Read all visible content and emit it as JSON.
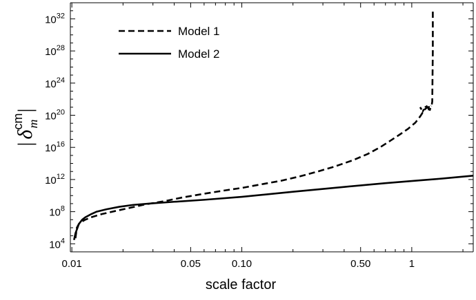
{
  "chart_data": {
    "type": "line",
    "title": "",
    "xlabel": "scale factor",
    "ylabel": {
      "open": "|",
      "symbol": "δ",
      "sup": "cm",
      "sub": "m",
      "close": "|"
    },
    "x_scale": "log",
    "y_scale": "log",
    "xlim": [
      0.0098,
      2.3
    ],
    "ylim": [
      1000,
      1e+34
    ],
    "grid": false,
    "legend_position": "top-left",
    "x_ticks": [
      {
        "value": 0.01,
        "label": "0.01"
      },
      {
        "value": 0.05,
        "label": "0.05"
      },
      {
        "value": 0.1,
        "label": "0.10"
      },
      {
        "value": 0.5,
        "label": "0.50"
      },
      {
        "value": 1,
        "label": "1"
      }
    ],
    "y_ticks": [
      {
        "exp": 4,
        "base": "10",
        "sup": "4"
      },
      {
        "exp": 8,
        "base": "10",
        "sup": "8"
      },
      {
        "exp": 12,
        "base": "10",
        "sup": "12"
      },
      {
        "exp": 16,
        "base": "10",
        "sup": "16"
      },
      {
        "exp": 20,
        "base": "10",
        "sup": "20"
      },
      {
        "exp": 24,
        "base": "10",
        "sup": "24"
      },
      {
        "exp": 28,
        "base": "10",
        "sup": "28"
      },
      {
        "exp": 32,
        "base": "10",
        "sup": "32"
      }
    ],
    "series": [
      {
        "name": "Model 1",
        "style": "dashed",
        "color": "#000000",
        "x": [
          0.0105,
          0.0107,
          0.011,
          0.0115,
          0.012,
          0.013,
          0.015,
          0.018,
          0.022,
          0.027,
          0.035,
          0.045,
          0.06,
          0.08,
          0.1,
          0.13,
          0.17,
          0.22,
          0.28,
          0.35,
          0.45,
          0.55,
          0.65,
          0.75,
          0.85,
          0.95,
          1.05,
          1.12,
          1.16,
          1.18,
          1.2,
          1.22,
          1.25,
          1.28,
          1.3,
          1.31,
          1.32,
          1.33,
          1.33
        ],
        "y": [
          50000.0,
          1000000.0,
          3000000.0,
          6000000.0,
          10000000.0,
          20000000.0,
          50000000.0,
          120000000.0,
          300000000.0,
          800000000.0,
          2000000000.0,
          6000000000.0,
          17000000000.0,
          45000000000.0,
          90000000000.0,
          250000000000.0,
          700000000000.0,
          2500000000000.0,
          10000000000000.0,
          40000000000000.0,
          250000000000000.0,
          1500000000000000.0,
          1e+16,
          7e+16,
          4e+17,
          2e+18,
          1.2e+19,
          7e+19,
          2.2e+20,
          4e+20,
          6e+20,
          8e+20,
          1e+21,
          1.15e+21,
          1.3e+21,
          1.8e+21,
          5e+21,
          1e+28,
          1e+33
        ]
      },
      {
        "name": "Model 2",
        "style": "solid",
        "color": "#000000",
        "x": [
          0.0103,
          0.0105,
          0.0108,
          0.011,
          0.0115,
          0.012,
          0.013,
          0.014,
          0.016,
          0.019,
          0.023,
          0.03,
          0.04,
          0.06,
          0.1,
          0.2,
          0.4,
          0.7,
          1,
          1.5,
          2.3
        ],
        "y": [
          30000.0,
          200000.0,
          1000000.0,
          3000000.0,
          10000000.0,
          20000000.0,
          50000000.0,
          100000000.0,
          200000000.0,
          400000000.0,
          700000000.0,
          1100000000.0,
          1700000000.0,
          3000000000.0,
          7000000000.0,
          30000000000.0,
          120000000000.0,
          350000000000.0,
          650000000000.0,
          1300000000000.0,
          3000000000000.0
        ]
      }
    ],
    "model1_dip_x": [
      1.12,
      1.16,
      1.2,
      1.24,
      1.27,
      1.3
    ],
    "model1_dip_y": [
      1e+21,
      3e+20,
      1e+21,
      1.5e+21,
      3e+20,
      1.5e+21
    ]
  }
}
